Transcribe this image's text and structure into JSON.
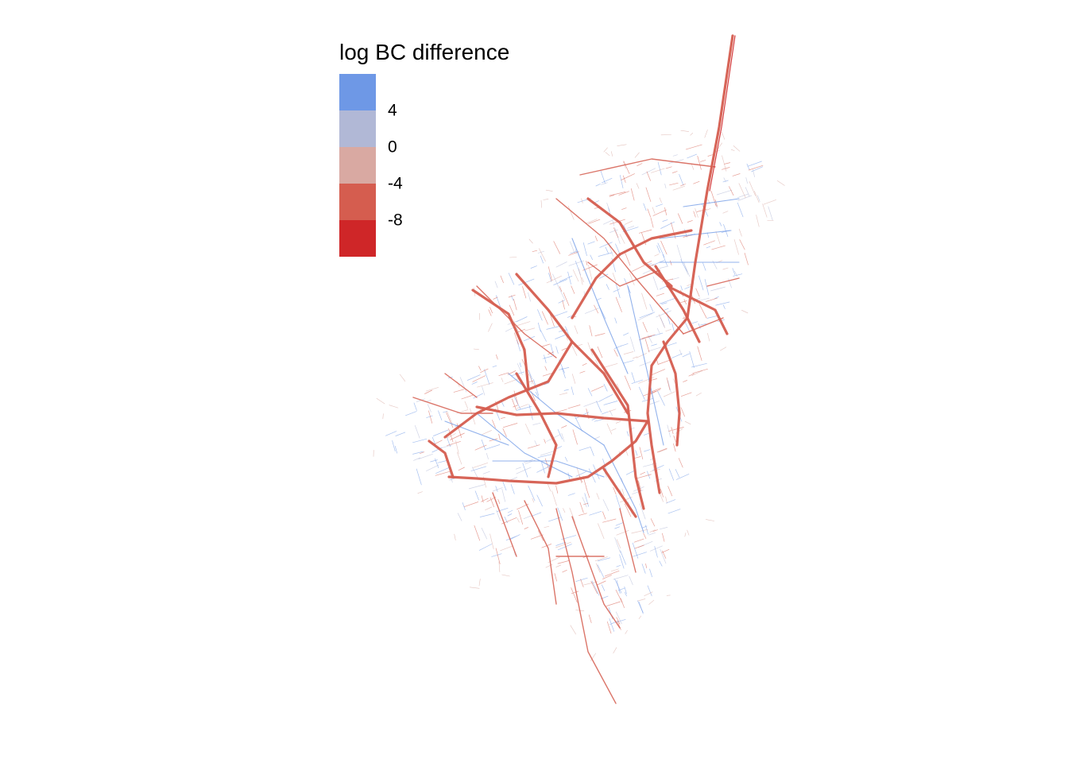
{
  "legend": {
    "title": "log BC difference",
    "colors": [
      "#6e98e6",
      "#b1b8d6",
      "#d9a9a2",
      "#d55d4f",
      "#cf2628"
    ],
    "labels": [
      "4",
      "0",
      "-4",
      "-8"
    ]
  },
  "map": {
    "colors": {
      "positive": "#6e98e6",
      "slightly_positive": "#b1b8d6",
      "slightly_negative": "#d9a9a2",
      "negative": "#d55d4f",
      "strongly_negative": "#cf2628"
    }
  }
}
